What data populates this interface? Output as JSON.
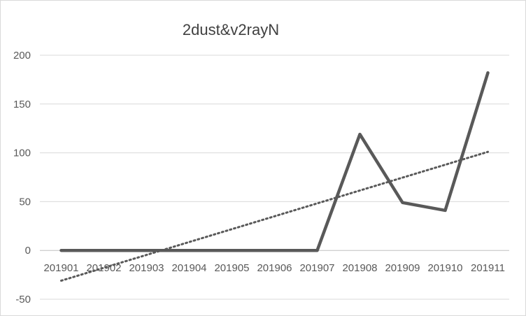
{
  "chart_data": {
    "type": "line",
    "title": "2dust&v2rayN",
    "xlabel": "",
    "ylabel": "",
    "categories": [
      "201901",
      "201902",
      "201903",
      "201904",
      "201905",
      "201906",
      "201907",
      "201908",
      "201909",
      "201910",
      "201911"
    ],
    "series": [
      {
        "values": [
          0,
          0,
          0,
          0,
          0,
          0,
          0,
          119,
          49,
          41,
          182
        ],
        "color": "#595959"
      }
    ],
    "trendline": {
      "type": "linear",
      "style": "dotted",
      "color": "#595959",
      "start": -31,
      "end": 101
    },
    "ylim": [
      -50,
      200
    ],
    "yticks": [
      -50,
      0,
      50,
      100,
      150,
      200
    ],
    "grid": true,
    "legend": "none"
  }
}
